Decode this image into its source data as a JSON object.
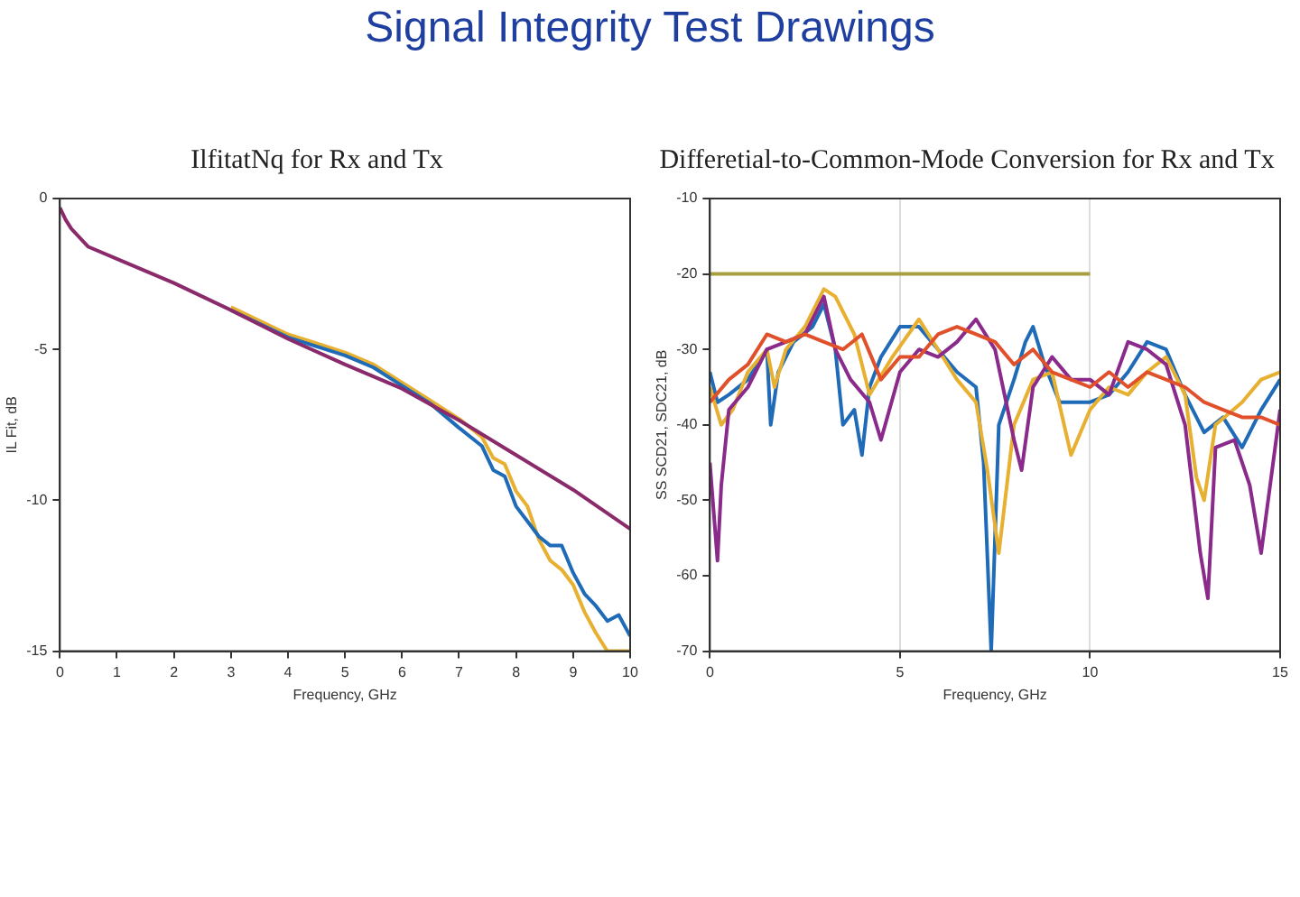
{
  "chart_data": [
    {
      "type": "line",
      "title": "IlfitatNq for Rx and Tx",
      "xlabel": "Frequency, GHz",
      "ylabel": "IL Fit, dB",
      "annotations": [
        "Signal Integrity Test Drawings"
      ],
      "xlim": [
        0,
        10
      ],
      "xticks": [
        0,
        1,
        2,
        3,
        4,
        5,
        6,
        7,
        8,
        9,
        10
      ],
      "ylim": [
        -15,
        0
      ],
      "yticks": [
        -15,
        -10,
        -5,
        0
      ],
      "grid": false,
      "legend": false,
      "marker": "none",
      "line_style": "solid",
      "series": [
        {
          "color": "#e8b030",
          "x": [
            3,
            4,
            4.5,
            5,
            5.5,
            6,
            6.5,
            7,
            7.4,
            7.6,
            7.8,
            8,
            8.2,
            8.4,
            8.6,
            8.8,
            9,
            9.2,
            9.4,
            9.6,
            10
          ],
          "values": [
            -3.6,
            -4.5,
            -4.8,
            -5.1,
            -5.5,
            -6.1,
            -6.7,
            -7.3,
            -7.9,
            -8.6,
            -8.8,
            -9.7,
            -10.2,
            -11.3,
            -12.0,
            -12.3,
            -12.8,
            -13.7,
            -14.4,
            -15,
            -15
          ]
        },
        {
          "color": "#1f6bb8",
          "x": [
            3,
            4,
            4.5,
            5,
            5.5,
            6,
            6.5,
            7,
            7.4,
            7.6,
            7.8,
            8,
            8.2,
            8.4,
            8.6,
            8.8,
            9,
            9.2,
            9.4,
            9.6,
            9.8,
            10
          ],
          "values": [
            -3.7,
            -4.6,
            -4.9,
            -5.2,
            -5.6,
            -6.2,
            -6.8,
            -7.6,
            -8.2,
            -9.0,
            -9.2,
            -10.2,
            -10.7,
            -11.2,
            -11.5,
            -11.5,
            -12.4,
            -13.1,
            -13.5,
            -14.0,
            -13.8,
            -14.5
          ]
        },
        {
          "color": "#8a2a6a",
          "x": [
            0,
            0.1,
            0.2,
            0.5,
            1,
            2,
            3,
            4,
            5,
            6,
            7,
            8,
            9,
            10
          ],
          "values": [
            -0.3,
            -0.7,
            -1.0,
            -1.6,
            -2.0,
            -2.8,
            -3.7,
            -4.65,
            -5.5,
            -6.3,
            -7.35,
            -8.5,
            -9.65,
            -10.95
          ]
        }
      ]
    },
    {
      "type": "line",
      "title": "Differetial-to-Common-Mode Conversion for Rx and Tx",
      "xlabel": "Frequency, GHz",
      "ylabel": "SS SCD21, SDC21, dB",
      "xlim": [
        0,
        15
      ],
      "xticks": [
        0,
        5,
        10,
        15
      ],
      "ylim": [
        -70,
        -10
      ],
      "yticks": [
        -70,
        -60,
        -50,
        -40,
        -30,
        -20,
        -10
      ],
      "grid": "x",
      "legend": false,
      "marker": "none",
      "line_style": "solid",
      "series": [
        {
          "color": "#a8a040",
          "x": [
            0,
            10
          ],
          "values": [
            -20,
            -20
          ]
        },
        {
          "color": "#1f6bb8",
          "x": [
            0,
            0.2,
            0.5,
            1,
            1.5,
            1.6,
            1.8,
            2.2,
            2.7,
            3,
            3.3,
            3.5,
            3.8,
            4,
            4.2,
            4.5,
            5,
            5.5,
            6,
            6.5,
            7,
            7.2,
            7.4,
            7.6,
            8,
            8.3,
            8.5,
            8.8,
            9.2,
            10,
            10.5,
            11,
            11.5,
            12,
            12.5,
            13,
            13.5,
            14,
            14.5,
            15
          ],
          "values": [
            -33,
            -37,
            -36,
            -34,
            -30,
            -40,
            -33,
            -29,
            -27,
            -24,
            -30,
            -40,
            -38,
            -44,
            -35,
            -31,
            -27,
            -27,
            -30,
            -33,
            -35,
            -45,
            -70,
            -40,
            -34,
            -29,
            -27,
            -32,
            -37,
            -37,
            -36,
            -33,
            -29,
            -30,
            -36,
            -41,
            -39,
            -43,
            -38,
            -34
          ]
        },
        {
          "color": "#e8b030",
          "x": [
            0,
            0.3,
            0.6,
            1,
            1.5,
            1.7,
            2,
            2.5,
            3,
            3.3,
            3.8,
            4.2,
            4.8,
            5.5,
            6,
            6.5,
            7,
            7.3,
            7.6,
            8,
            8.5,
            9,
            9.5,
            10,
            10.5,
            11,
            11.5,
            12,
            12.5,
            12.8,
            13,
            13.3,
            14,
            14.5,
            15
          ],
          "values": [
            -35,
            -40,
            -38,
            -33,
            -30,
            -35,
            -30,
            -27,
            -22,
            -23,
            -28,
            -36,
            -31,
            -26,
            -30,
            -34,
            -37,
            -46,
            -57,
            -40,
            -34,
            -33,
            -44,
            -38,
            -35,
            -36,
            -33,
            -31,
            -36,
            -47,
            -50,
            -40,
            -37,
            -34,
            -33
          ]
        },
        {
          "color": "#8a2a8a",
          "x": [
            0,
            0.2,
            0.3,
            0.5,
            1,
            1.5,
            2,
            2.5,
            3,
            3.3,
            3.7,
            4.2,
            4.5,
            5,
            5.5,
            6,
            6.5,
            7,
            7.5,
            8,
            8.2,
            8.5,
            9,
            9.5,
            10,
            10.5,
            11,
            11.5,
            12,
            12.5,
            12.9,
            13.1,
            13.3,
            13.8,
            14.2,
            14.5,
            15
          ],
          "values": [
            -45,
            -58,
            -48,
            -38,
            -35,
            -30,
            -29,
            -28,
            -23,
            -30,
            -34,
            -37,
            -42,
            -33,
            -30,
            -31,
            -29,
            -26,
            -30,
            -42,
            -46,
            -35,
            -31,
            -34,
            -34,
            -36,
            -29,
            -30,
            -32,
            -40,
            -57,
            -63,
            -43,
            -42,
            -48,
            -57,
            -38
          ]
        },
        {
          "color": "#e0502a",
          "x": [
            0,
            0.5,
            1,
            1.5,
            2,
            2.5,
            3,
            3.5,
            4,
            4.5,
            5,
            5.5,
            6,
            6.5,
            7,
            7.5,
            8,
            8.5,
            9,
            9.5,
            10,
            10.5,
            11,
            11.5,
            12,
            12.5,
            13,
            13.5,
            14,
            14.5,
            15
          ],
          "values": [
            -37,
            -34,
            -32,
            -28,
            -29,
            -28,
            -29,
            -30,
            -28,
            -34,
            -31,
            -31,
            -28,
            -27,
            -28,
            -29,
            -32,
            -30,
            -33,
            -34,
            -35,
            -33,
            -35,
            -33,
            -34,
            -35,
            -37,
            -38,
            -39,
            -39,
            -40
          ]
        }
      ]
    }
  ]
}
